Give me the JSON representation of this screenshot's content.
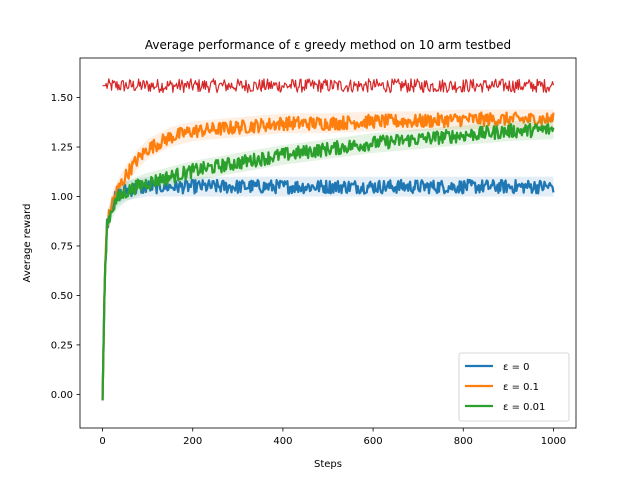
{
  "chart_data": {
    "type": "line",
    "title": "Average performance of ε greedy method on 10 arm testbed",
    "xlabel": "Steps",
    "ylabel": "Average reward",
    "xlim": [
      -50,
      1050
    ],
    "ylim": [
      -0.17,
      1.7
    ],
    "xticks": [
      0,
      200,
      400,
      600,
      800,
      1000
    ],
    "yticks": [
      0.0,
      0.25,
      0.5,
      0.75,
      1.0,
      1.25,
      1.5
    ],
    "ytick_labels": [
      "0.00",
      "0.25",
      "0.50",
      "0.75",
      "1.00",
      "1.25",
      "1.50"
    ],
    "grid": false,
    "legend": "lower-right",
    "series": [
      {
        "name": "ε = 0",
        "color": "#1f77b4",
        "x": [
          0,
          5,
          10,
          20,
          30,
          50,
          75,
          100,
          150,
          200,
          300,
          400,
          500,
          600,
          700,
          800,
          900,
          1000
        ],
        "values": [
          -0.03,
          0.6,
          0.86,
          0.95,
          1.0,
          1.03,
          1.04,
          1.05,
          1.05,
          1.05,
          1.05,
          1.05,
          1.05,
          1.05,
          1.05,
          1.05,
          1.05,
          1.05
        ]
      },
      {
        "name": "ε = 0.1",
        "color": "#ff7f0e",
        "x": [
          0,
          5,
          10,
          20,
          30,
          50,
          75,
          100,
          150,
          200,
          250,
          300,
          400,
          500,
          600,
          700,
          800,
          900,
          1000
        ],
        "values": [
          -0.03,
          0.6,
          0.86,
          0.96,
          1.02,
          1.1,
          1.18,
          1.24,
          1.3,
          1.33,
          1.34,
          1.35,
          1.37,
          1.37,
          1.38,
          1.38,
          1.39,
          1.39,
          1.39
        ]
      },
      {
        "name": "ε = 0.01",
        "color": "#2ca02c",
        "x": [
          0,
          5,
          10,
          20,
          30,
          50,
          75,
          100,
          150,
          200,
          300,
          400,
          500,
          600,
          700,
          800,
          900,
          1000
        ],
        "values": [
          -0.03,
          0.6,
          0.86,
          0.93,
          0.98,
          1.02,
          1.05,
          1.07,
          1.1,
          1.13,
          1.17,
          1.21,
          1.24,
          1.27,
          1.29,
          1.31,
          1.33,
          1.34
        ]
      },
      {
        "color": "#d62728",
        "x": [
          0,
          1000
        ],
        "values": [
          1.56,
          1.56
        ]
      }
    ]
  }
}
